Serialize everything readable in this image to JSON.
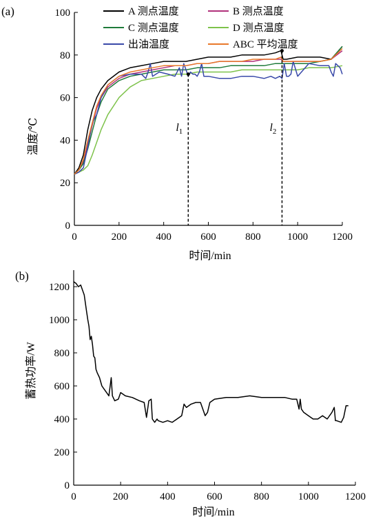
{
  "chart_data": [
    {
      "panel_label": "(a)",
      "type": "line",
      "xlabel": "时间/min",
      "ylabel": "温度/℃",
      "xlim": [
        0,
        1200
      ],
      "ylim": [
        0,
        100
      ],
      "xticks": [
        0,
        200,
        400,
        600,
        800,
        1000,
        1200
      ],
      "yticks": [
        0,
        20,
        40,
        60,
        80,
        100
      ],
      "legend": "top",
      "series": [
        {
          "name": "A 测点温度",
          "color": "#000000",
          "x": [
            0,
            20,
            40,
            60,
            80,
            100,
            120,
            150,
            200,
            250,
            300,
            350,
            400,
            450,
            500,
            550,
            600,
            650,
            700,
            750,
            800,
            850,
            900,
            925,
            935,
            950,
            1000,
            1050,
            1100,
            1150,
            1200
          ],
          "y": [
            24,
            27,
            33,
            45,
            54,
            60,
            64,
            68,
            72,
            74,
            75,
            76,
            77,
            77,
            77,
            78,
            79,
            79,
            79,
            80,
            80,
            80,
            81,
            82,
            78,
            78,
            79,
            79,
            79,
            78,
            84
          ]
        },
        {
          "name": "B 测点温度",
          "color": "#b0307a",
          "x": [
            0,
            20,
            40,
            60,
            80,
            100,
            120,
            150,
            200,
            250,
            300,
            350,
            400,
            450,
            500,
            550,
            600,
            650,
            700,
            750,
            800,
            850,
            900,
            925,
            935,
            950,
            1000,
            1050,
            1100,
            1150,
            1200
          ],
          "y": [
            24,
            26,
            30,
            38,
            47,
            55,
            60,
            65,
            69,
            71,
            72,
            73,
            74,
            75,
            75,
            76,
            76,
            77,
            77,
            77,
            77,
            78,
            78,
            78,
            77,
            77,
            77,
            77,
            77,
            78,
            82
          ]
        },
        {
          "name": "C 测点温度",
          "color": "#1e7a3a",
          "x": [
            0,
            20,
            40,
            60,
            80,
            100,
            120,
            150,
            200,
            250,
            300,
            350,
            400,
            450,
            500,
            550,
            600,
            650,
            700,
            750,
            800,
            850,
            900,
            925,
            935,
            950,
            1000,
            1050,
            1100,
            1150,
            1200
          ],
          "y": [
            24,
            26,
            29,
            36,
            44,
            52,
            58,
            64,
            68,
            70,
            71,
            72,
            73,
            73,
            73,
            74,
            74,
            74,
            75,
            75,
            75,
            75,
            76,
            76,
            76,
            76,
            76,
            76,
            77,
            78,
            84
          ]
        },
        {
          "name": "D 测点温度",
          "color": "#7dc24a",
          "x": [
            0,
            20,
            40,
            60,
            80,
            100,
            120,
            150,
            200,
            250,
            300,
            350,
            400,
            450,
            500,
            550,
            600,
            650,
            700,
            750,
            800,
            850,
            900,
            950,
            1000,
            1050,
            1100,
            1150,
            1200
          ],
          "y": [
            24,
            25,
            26,
            28,
            33,
            39,
            45,
            52,
            60,
            65,
            68,
            69,
            70,
            71,
            71,
            72,
            72,
            72,
            72,
            73,
            73,
            73,
            73,
            73,
            73,
            74,
            74,
            74,
            75
          ]
        },
        {
          "name": "出油温度",
          "color": "#3848a8",
          "x": [
            0,
            20,
            40,
            60,
            80,
            100,
            120,
            150,
            200,
            250,
            300,
            320,
            330,
            340,
            350,
            380,
            420,
            450,
            470,
            480,
            490,
            500,
            510,
            520,
            530,
            540,
            550,
            560,
            570,
            580,
            600,
            650,
            700,
            750,
            800,
            850,
            880,
            900,
            920,
            930,
            940,
            950,
            960,
            970,
            980,
            1000,
            1050,
            1100,
            1140,
            1150,
            1160,
            1170,
            1190,
            1200
          ],
          "y": [
            24,
            25,
            27,
            37,
            48,
            52,
            60,
            66,
            70,
            71,
            71,
            69,
            72,
            76,
            70,
            72,
            71,
            70,
            74,
            70,
            76,
            73,
            70,
            72,
            71,
            71,
            70,
            72,
            76,
            70,
            70,
            69,
            69,
            70,
            70,
            69,
            70,
            69,
            70,
            69,
            76,
            70,
            70,
            71,
            77,
            70,
            76,
            75,
            75,
            72,
            70,
            76,
            74,
            71
          ]
        },
        {
          "name": "ABC 平均温度",
          "color": "#e8782a",
          "x": [
            0,
            20,
            40,
            60,
            80,
            100,
            120,
            150,
            200,
            250,
            300,
            350,
            400,
            450,
            500,
            550,
            600,
            650,
            700,
            750,
            800,
            850,
            900,
            925,
            935,
            950,
            1000,
            1050,
            1100,
            1150,
            1200
          ],
          "y": [
            24,
            26,
            31,
            40,
            48,
            56,
            61,
            66,
            70,
            72,
            73,
            74,
            75,
            75,
            75,
            76,
            76,
            77,
            77,
            77,
            78,
            78,
            78,
            79,
            77,
            77,
            77,
            77,
            77,
            78,
            83
          ]
        }
      ],
      "annotations": [
        {
          "label": "l",
          "subscript": "1",
          "x": 510,
          "y": 71
        },
        {
          "label": "l",
          "subscript": "2",
          "x": 930,
          "y": 82
        }
      ]
    },
    {
      "panel_label": "(b)",
      "type": "line",
      "xlabel": "时间/min",
      "ylabel": "蓄热功率/W",
      "xlim": [
        0,
        1200
      ],
      "ylim": [
        0,
        1300
      ],
      "xticks": [
        0,
        200,
        400,
        600,
        800,
        1000,
        1200
      ],
      "yticks": [
        0,
        200,
        400,
        600,
        800,
        1000,
        1200
      ],
      "series": [
        {
          "name": "",
          "color": "#000000",
          "x": [
            0,
            10,
            20,
            30,
            45,
            55,
            60,
            65,
            70,
            75,
            80,
            85,
            90,
            95,
            100,
            110,
            120,
            130,
            140,
            150,
            160,
            165,
            175,
            190,
            200,
            220,
            250,
            280,
            300,
            310,
            320,
            330,
            335,
            345,
            350,
            355,
            360,
            380,
            400,
            420,
            440,
            450,
            460,
            470,
            480,
            500,
            520,
            540,
            560,
            570,
            580,
            590,
            600,
            650,
            700,
            750,
            800,
            850,
            900,
            930,
            950,
            960,
            965,
            970,
            980,
            1000,
            1020,
            1040,
            1060,
            1080,
            1100,
            1110,
            1115,
            1120,
            1140,
            1150,
            1160,
            1170
          ],
          "y": [
            1230,
            1220,
            1200,
            1210,
            1150,
            1050,
            1000,
            960,
            880,
            900,
            850,
            780,
            770,
            700,
            680,
            650,
            600,
            580,
            560,
            540,
            650,
            540,
            510,
            520,
            560,
            540,
            530,
            510,
            500,
            410,
            510,
            520,
            400,
            380,
            390,
            400,
            390,
            380,
            390,
            380,
            400,
            410,
            420,
            490,
            470,
            490,
            500,
            500,
            420,
            440,
            500,
            510,
            520,
            530,
            530,
            540,
            530,
            530,
            530,
            520,
            520,
            460,
            520,
            460,
            440,
            420,
            400,
            400,
            420,
            400,
            440,
            470,
            390,
            390,
            380,
            410,
            480,
            480
          ]
        }
      ]
    }
  ]
}
